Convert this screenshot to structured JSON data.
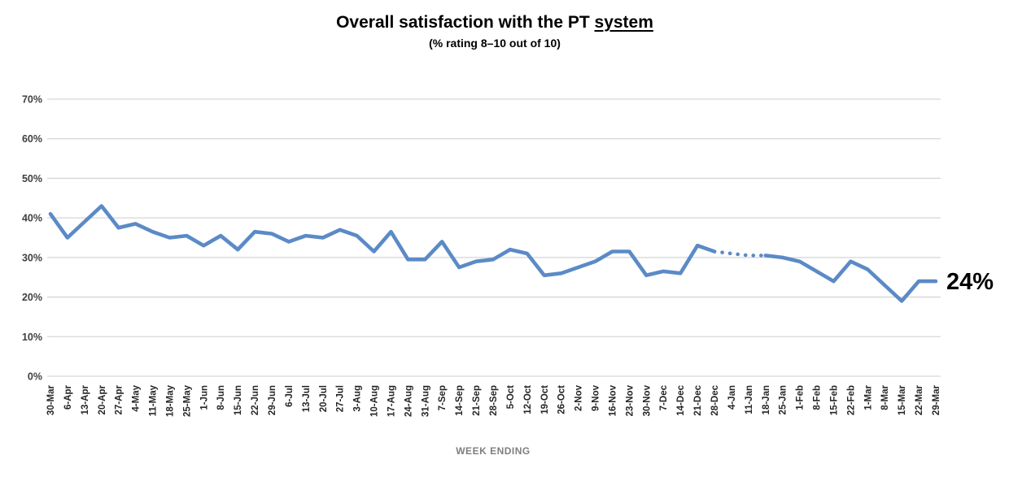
{
  "title": {
    "prefix": "Overall satisfaction with the PT ",
    "underlined": "system"
  },
  "subtitle": "(% rating 8–10 out of 10)",
  "chart_data": {
    "type": "line",
    "title": "Overall satisfaction with the PT system",
    "subtitle": "(% rating 8–10 out of 10)",
    "xlabel": "WEEK ENDING",
    "ylabel": "",
    "ylim": [
      0,
      70
    ],
    "y_tick_step": 10,
    "y_tick_labels": [
      "0%",
      "10%",
      "20%",
      "30%",
      "40%",
      "50%",
      "60%",
      "70%"
    ],
    "grid": true,
    "legend": false,
    "categories": [
      "30-Mar",
      "6-Apr",
      "13-Apr",
      "20-Apr",
      "27-Apr",
      "4-May",
      "11-May",
      "18-May",
      "25-May",
      "1-Jun",
      "8-Jun",
      "15-Jun",
      "22-Jun",
      "29-Jun",
      "6-Jul",
      "13-Jul",
      "20-Jul",
      "27-Jul",
      "3-Aug",
      "10-Aug",
      "17-Aug",
      "24-Aug",
      "31-Aug",
      "7-Sep",
      "14-Sep",
      "21-Sep",
      "28-Sep",
      "5-Oct",
      "12-Oct",
      "19-Oct",
      "26-Oct",
      "2-Nov",
      "9-Nov",
      "16-Nov",
      "23-Nov",
      "30-Nov",
      "7-Dec",
      "14-Dec",
      "21-Dec",
      "28-Dec",
      "4-Jan",
      "11-Jan",
      "18-Jan",
      "25-Jan",
      "1-Feb",
      "8-Feb",
      "15-Feb",
      "22-Feb",
      "1-Mar",
      "8-Mar",
      "15-Mar",
      "22-Mar",
      "29-Mar"
    ],
    "series": [
      {
        "name": "Overall satisfaction (% rating 8-10)",
        "values": [
          41,
          35,
          39,
          43,
          37.5,
          38.5,
          36.5,
          35,
          35.5,
          33,
          35.5,
          32,
          36.5,
          36,
          34,
          35.5,
          35,
          37,
          35.5,
          31.5,
          36.5,
          29.5,
          29.5,
          34,
          27.5,
          29,
          29.5,
          32,
          31,
          25.5,
          26,
          27.5,
          29,
          31.5,
          31.5,
          25.5,
          26.5,
          26,
          33,
          31.5,
          31,
          30.5,
          30.5,
          30,
          29,
          26.5,
          24,
          29,
          27,
          23,
          19,
          24,
          24
        ],
        "dotted_between": [
          "28-Dec",
          "18-Jan"
        ],
        "dotted_start_index": 39,
        "dotted_end_index": 42,
        "end_label": "24%"
      }
    ],
    "annotations": [
      {
        "text": "24%",
        "at_category": "29-Mar",
        "at_value": 24
      }
    ]
  },
  "colors": {
    "series_line": "#5B8AC6",
    "gridline": "#D6D6D6",
    "y_tick_text": "#3F3F3F",
    "x_tick_text": "#262626",
    "axis_title_text": "#7F7F7F",
    "annotation_text": "#000000",
    "background": "#FFFFFF"
  }
}
